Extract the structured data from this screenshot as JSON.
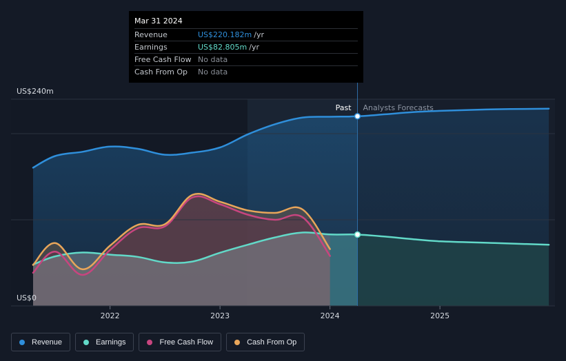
{
  "chart_data": {
    "type": "area",
    "title": "",
    "xlabel": "",
    "ylabel": "",
    "ylim": [
      0,
      240
    ],
    "xlim": [
      2021.3,
      2025.99
    ],
    "y_tick_labels": [
      {
        "value": 240,
        "label": "US$240m"
      },
      {
        "value": 0,
        "label": "US$0"
      }
    ],
    "x_ticks": [
      {
        "value": 2022,
        "label": "2022"
      },
      {
        "value": 2023,
        "label": "2023"
      },
      {
        "value": 2024,
        "label": "2024"
      },
      {
        "value": 2025,
        "label": "2025"
      }
    ],
    "divider": {
      "x": 2024.25,
      "past_label": "Past",
      "forecast_label": "Analysts Forecasts"
    },
    "shaded_start": 2023.25,
    "series": [
      {
        "name": "Revenue",
        "key": "revenue",
        "color": "#2f8fdb",
        "points": [
          [
            2021.3,
            160.5
          ],
          [
            2021.5,
            174
          ],
          [
            2021.75,
            179
          ],
          [
            2022,
            185
          ],
          [
            2022.25,
            182.5
          ],
          [
            2022.5,
            175.5
          ],
          [
            2022.75,
            178
          ],
          [
            2023,
            184
          ],
          [
            2023.25,
            199
          ],
          [
            2023.5,
            211
          ],
          [
            2023.75,
            218.7
          ],
          [
            2024,
            219.6
          ],
          [
            2024.25,
            220.2
          ],
          [
            2024.5,
            222.5
          ],
          [
            2024.75,
            225
          ],
          [
            2025,
            226.5
          ],
          [
            2025.5,
            228.3
          ],
          [
            2025.99,
            229
          ]
        ]
      },
      {
        "name": "Earnings",
        "key": "earnings",
        "color": "#62d9c8",
        "points": [
          [
            2021.3,
            48
          ],
          [
            2021.5,
            57.5
          ],
          [
            2021.75,
            62
          ],
          [
            2022,
            59.5
          ],
          [
            2022.25,
            57
          ],
          [
            2022.5,
            50.5
          ],
          [
            2022.75,
            51.5
          ],
          [
            2023,
            61.8
          ],
          [
            2023.25,
            71
          ],
          [
            2023.5,
            79.5
          ],
          [
            2023.75,
            85.2
          ],
          [
            2024,
            83
          ],
          [
            2024.25,
            82.805
          ],
          [
            2024.5,
            80.5
          ],
          [
            2024.75,
            77.5
          ],
          [
            2025,
            75
          ],
          [
            2025.5,
            73
          ],
          [
            2025.99,
            71
          ]
        ]
      },
      {
        "name": "Free Cash Flow",
        "key": "fcf",
        "color": "#c8457f",
        "points": [
          [
            2021.3,
            38.5
          ],
          [
            2021.5,
            63
          ],
          [
            2021.75,
            36
          ],
          [
            2022,
            65
          ],
          [
            2022.25,
            90
          ],
          [
            2022.5,
            92.5
          ],
          [
            2022.75,
            126
          ],
          [
            2023,
            118
          ],
          [
            2023.25,
            106
          ],
          [
            2023.5,
            100
          ],
          [
            2023.75,
            103
          ],
          [
            2024,
            58
          ]
        ]
      },
      {
        "name": "Cash From Op",
        "key": "cfo",
        "color": "#e9a65a",
        "points": [
          [
            2021.3,
            47.5
          ],
          [
            2021.5,
            73
          ],
          [
            2021.75,
            42.5
          ],
          [
            2022,
            70
          ],
          [
            2022.25,
            94
          ],
          [
            2022.5,
            95
          ],
          [
            2022.75,
            129
          ],
          [
            2023,
            121
          ],
          [
            2023.25,
            111
          ],
          [
            2023.5,
            108
          ],
          [
            2023.75,
            112
          ],
          [
            2024,
            66
          ]
        ]
      }
    ],
    "highlight_x": 2024.25
  },
  "tooltip": {
    "date": "Mar 31 2024",
    "rows": [
      {
        "label": "Revenue",
        "value": "US$220.182m",
        "unit": "/yr",
        "color": "#2f8fdb"
      },
      {
        "label": "Earnings",
        "value": "US$82.805m",
        "unit": "/yr",
        "color": "#62d9c8"
      },
      {
        "label": "Free Cash Flow",
        "value": "No data",
        "unit": "",
        "color": ""
      },
      {
        "label": "Cash From Op",
        "value": "No data",
        "unit": "",
        "color": ""
      }
    ]
  },
  "legend": [
    {
      "label": "Revenue",
      "color": "#2f8fdb"
    },
    {
      "label": "Earnings",
      "color": "#62d9c8"
    },
    {
      "label": "Free Cash Flow",
      "color": "#c8457f"
    },
    {
      "label": "Cash From Op",
      "color": "#e9a65a"
    }
  ]
}
